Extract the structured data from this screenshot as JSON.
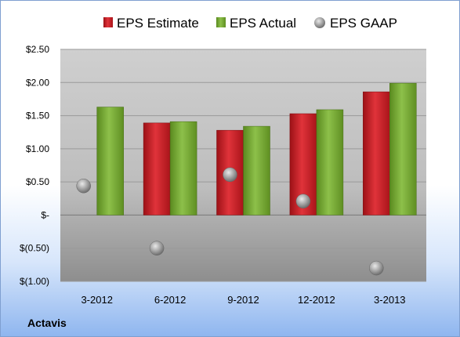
{
  "company": "Actavis",
  "colors": {
    "estimate": "#cc2229",
    "actual": "#76a732",
    "gaap": "#9a9a9a"
  },
  "chart_data": {
    "type": "bar",
    "categories": [
      "3-2012",
      "6-2012",
      "9-2012",
      "12-2012",
      "3-2013"
    ],
    "series": [
      {
        "name": "EPS Estimate",
        "kind": "bar",
        "values": [
          null,
          1.39,
          1.28,
          1.53,
          1.86
        ]
      },
      {
        "name": "EPS Actual",
        "kind": "bar",
        "values": [
          1.63,
          1.41,
          1.34,
          1.59,
          1.99
        ]
      },
      {
        "name": "EPS GAAP",
        "kind": "point",
        "values": [
          0.44,
          -0.5,
          0.61,
          0.21,
          -0.8
        ]
      }
    ],
    "ylim": [
      -1.0,
      2.5
    ],
    "yticks": [
      2.5,
      2.0,
      1.5,
      1.0,
      0.5,
      0,
      -0.5,
      -1.0
    ],
    "ytick_labels": [
      "$2.50",
      "$2.00",
      "$1.50",
      "$1.00",
      "$0.50",
      "$-",
      "$(0.50)",
      "$(1.00)"
    ],
    "grid": true,
    "legend_position": "top"
  }
}
